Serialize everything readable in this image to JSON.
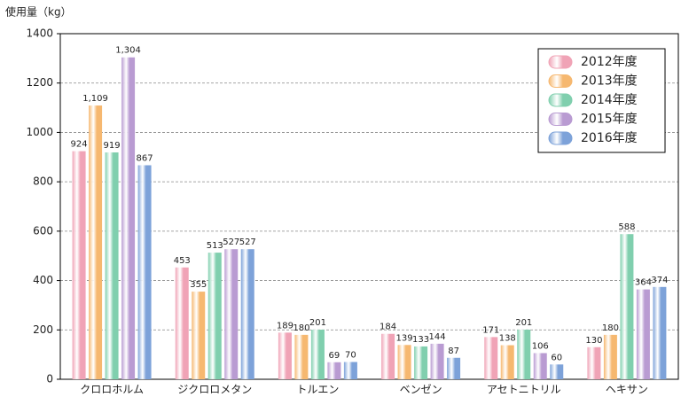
{
  "chart_data": {
    "type": "bar",
    "y_label": "使用量（kg）",
    "categories": [
      "クロロホルム",
      "ジクロロメタン",
      "トルエン",
      "ベンゼン",
      "アセトニトリル",
      "ヘキサン"
    ],
    "series": [
      {
        "name": "2012年度",
        "color": "#f0a3b6",
        "values": [
          924,
          453,
          189,
          184,
          171,
          130
        ]
      },
      {
        "name": "2013年度",
        "color": "#f6b870",
        "values": [
          1109,
          355,
          180,
          139,
          138,
          180
        ],
        "value_labels": [
          "1,109",
          "355",
          "180",
          "139",
          "138",
          "180"
        ]
      },
      {
        "name": "2014年度",
        "color": "#80cfae",
        "values": [
          919,
          513,
          201,
          133,
          201,
          588
        ]
      },
      {
        "name": "2015年度",
        "color": "#b99bd2",
        "values": [
          1304,
          527,
          69,
          144,
          106,
          364
        ],
        "value_labels": [
          "1,304",
          "527",
          "69",
          "144",
          "106",
          "364"
        ]
      },
      {
        "name": "2016年度",
        "color": "#7da2d9",
        "values": [
          867,
          527,
          70,
          87,
          60,
          374
        ]
      }
    ],
    "ylim": [
      0,
      1400
    ],
    "yticks": [
      0,
      200,
      400,
      600,
      800,
      1000,
      1200,
      1400
    ],
    "grid": true,
    "legend": "upper right"
  }
}
